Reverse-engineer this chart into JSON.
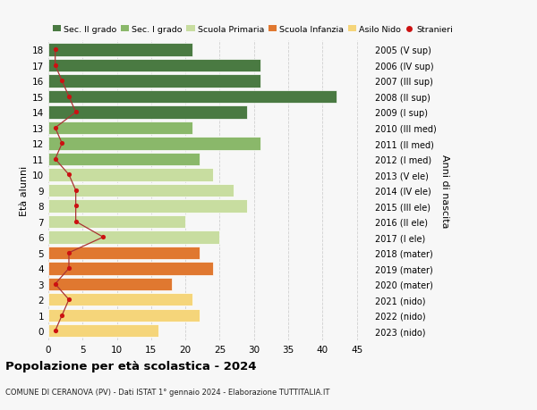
{
  "ages": [
    0,
    1,
    2,
    3,
    4,
    5,
    6,
    7,
    8,
    9,
    10,
    11,
    12,
    13,
    14,
    15,
    16,
    17,
    18
  ],
  "bar_values": [
    16,
    22,
    21,
    18,
    24,
    22,
    25,
    20,
    29,
    27,
    24,
    22,
    31,
    21,
    29,
    42,
    31,
    31,
    21
  ],
  "bar_colors": [
    "#f5d57a",
    "#f5d57a",
    "#f5d57a",
    "#e07830",
    "#e07830",
    "#e07830",
    "#c8dda0",
    "#c8dda0",
    "#c8dda0",
    "#c8dda0",
    "#c8dda0",
    "#8ab86a",
    "#8ab86a",
    "#8ab86a",
    "#4a7a42",
    "#4a7a42",
    "#4a7a42",
    "#4a7a42",
    "#4a7a42"
  ],
  "stranieri_values": [
    1,
    2,
    3,
    1,
    3,
    3,
    8,
    4,
    4,
    4,
    3,
    1,
    2,
    1,
    4,
    3,
    2,
    1,
    1
  ],
  "right_labels": [
    "2023 (nido)",
    "2022 (nido)",
    "2021 (nido)",
    "2020 (mater)",
    "2019 (mater)",
    "2018 (mater)",
    "2017 (I ele)",
    "2016 (II ele)",
    "2015 (III ele)",
    "2014 (IV ele)",
    "2013 (V ele)",
    "2012 (I med)",
    "2011 (II med)",
    "2010 (III med)",
    "2009 (I sup)",
    "2008 (II sup)",
    "2007 (III sup)",
    "2006 (IV sup)",
    "2005 (V sup)"
  ],
  "legend_labels": [
    "Sec. II grado",
    "Sec. I grado",
    "Scuola Primaria",
    "Scuola Infanzia",
    "Asilo Nido",
    "Stranieri"
  ],
  "legend_colors": [
    "#4a7a42",
    "#8ab86a",
    "#c8dda0",
    "#e07830",
    "#f5d57a",
    "#cc1111"
  ],
  "ylabel_left": "Età alunni",
  "ylabel_right": "Anni di nascita",
  "title": "Popolazione per età scolastica - 2024",
  "subtitle": "COMUNE DI CERANOVA (PV) - Dati ISTAT 1° gennaio 2024 - Elaborazione TUTTITALIA.IT",
  "xlim": [
    0,
    47
  ],
  "xticks": [
    0,
    5,
    10,
    15,
    20,
    25,
    30,
    35,
    40,
    45
  ],
  "bg_color": "#f7f7f7",
  "stranieri_color": "#cc1111",
  "stranieri_line_color": "#aa3333"
}
